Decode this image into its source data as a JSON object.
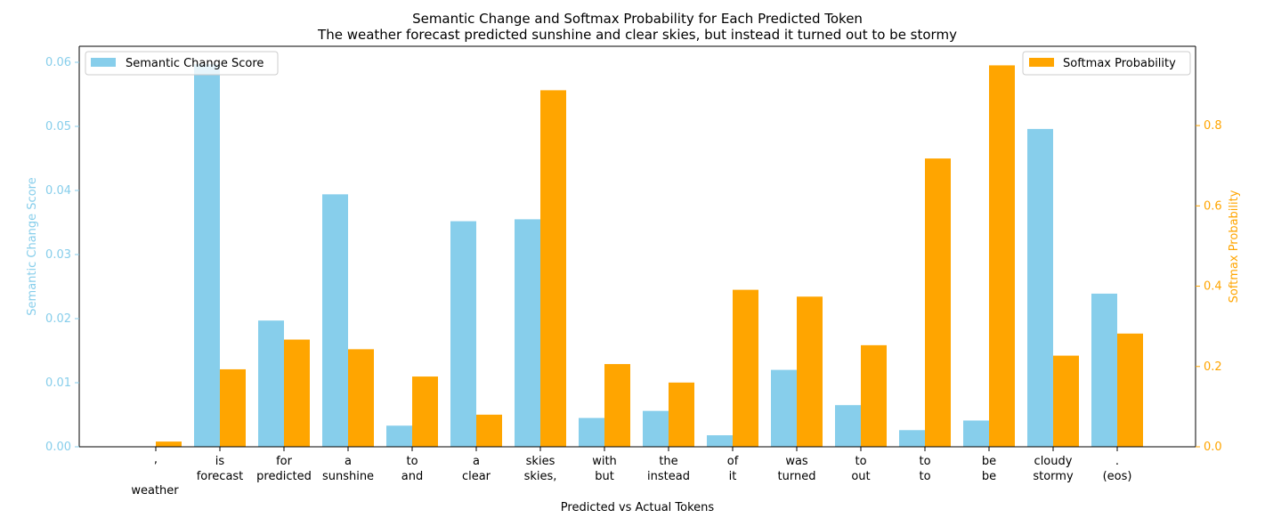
{
  "chart_data": {
    "type": "bar",
    "title": "Semantic Change and Softmax Probability for Each Predicted Token",
    "subtitle": "The weather forecast predicted sunshine and clear skies, but instead it turned out to be stormy",
    "xlabel": "Predicted vs Actual Tokens",
    "ylabel_left": "Semantic Change Score",
    "ylabel_right": "Softmax Probability",
    "categories": [
      {
        "predicted": ",",
        "actual": "weather"
      },
      {
        "predicted": "is",
        "actual": "forecast"
      },
      {
        "predicted": "for",
        "actual": "predicted"
      },
      {
        "predicted": "a",
        "actual": "sunshine"
      },
      {
        "predicted": "to",
        "actual": "and"
      },
      {
        "predicted": "a",
        "actual": "clear"
      },
      {
        "predicted": "skies",
        "actual": "skies,"
      },
      {
        "predicted": "with",
        "actual": "but"
      },
      {
        "predicted": "the",
        "actual": "instead"
      },
      {
        "predicted": "of",
        "actual": "it"
      },
      {
        "predicted": "was",
        "actual": "turned"
      },
      {
        "predicted": "to",
        "actual": "out"
      },
      {
        "predicted": "to",
        "actual": "to"
      },
      {
        "predicted": "be",
        "actual": "be"
      },
      {
        "predicted": "cloudy",
        "actual": "stormy"
      },
      {
        "predicted": ".",
        "actual": "(eos)"
      }
    ],
    "series": [
      {
        "name": "Semantic Change Score",
        "axis": "left",
        "color": "#87ceeb",
        "values": [
          0,
          0.0597,
          0.0197,
          0.0394,
          0.0033,
          0.0352,
          0.0355,
          0.0045,
          0.0056,
          0.0018,
          0.012,
          0.0065,
          0.0026,
          0.0041,
          0.0496,
          0.0239
        ]
      },
      {
        "name": "Softmax Probability",
        "axis": "right",
        "color": "#ffa500",
        "values": [
          0.013,
          0.193,
          0.267,
          0.243,
          0.175,
          0.08,
          0.888,
          0.206,
          0.16,
          0.391,
          0.374,
          0.253,
          0.718,
          0.95,
          0.227,
          0.282
        ]
      }
    ],
    "ylim_left": [
      0,
      0.0625
    ],
    "yticks_left": [
      0.0,
      0.01,
      0.02,
      0.03,
      0.04,
      0.05,
      0.06
    ],
    "ytick_labels_left": [
      "0.00",
      "0.01",
      "0.02",
      "0.03",
      "0.04",
      "0.05",
      "0.06"
    ],
    "ylim_right": [
      0,
      0.9975
    ],
    "yticks_right": [
      0.0,
      0.2,
      0.4,
      0.6,
      0.8
    ],
    "ytick_labels_right": [
      "0.0",
      "0.2",
      "0.4",
      "0.6",
      "0.8"
    ],
    "legend_left_position": "top-left",
    "legend_right_position": "top-right",
    "grid": false
  }
}
